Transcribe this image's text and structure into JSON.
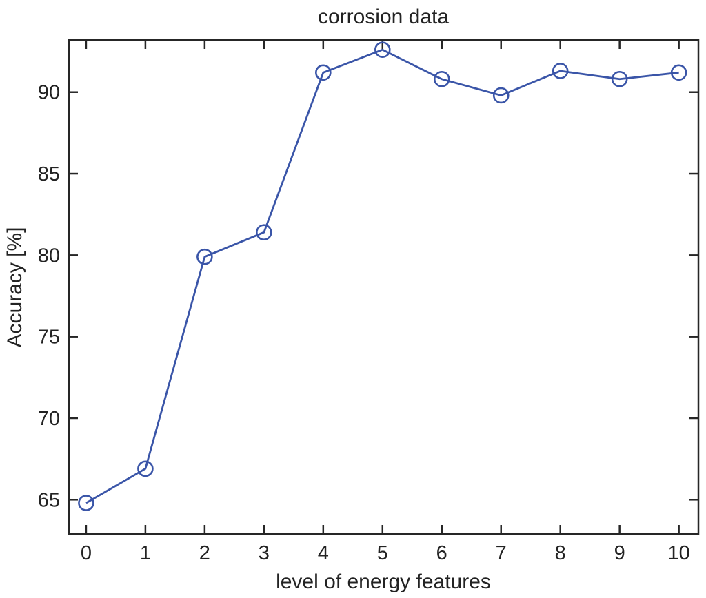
{
  "figure": {
    "title": "corrosion data",
    "xlabel": "level of energy features",
    "ylabel": "Accuracy [%]"
  },
  "chart_data": {
    "type": "line",
    "title": "corrosion data",
    "xlabel": "level of energy features",
    "ylabel": "Accuracy [%]",
    "x": [
      0,
      1,
      2,
      3,
      4,
      5,
      6,
      7,
      8,
      9,
      10
    ],
    "series": [
      {
        "name": "accuracy",
        "values": [
          64.8,
          66.9,
          79.9,
          81.4,
          91.2,
          92.6,
          90.8,
          89.8,
          91.3,
          90.8,
          91.2
        ]
      }
    ],
    "x_ticks": [
      0,
      1,
      2,
      3,
      4,
      5,
      6,
      7,
      8,
      9,
      10
    ],
    "y_ticks": [
      65,
      70,
      75,
      80,
      85,
      90
    ],
    "xlim": [
      -0.29,
      10.33
    ],
    "ylim": [
      62.9,
      93.2
    ],
    "grid": false,
    "legend_position": "none",
    "marker": "open-circle",
    "colors": {
      "line": "#3a55a8",
      "axis": "#262626",
      "text": "#232323",
      "background": "#ffffff"
    }
  }
}
